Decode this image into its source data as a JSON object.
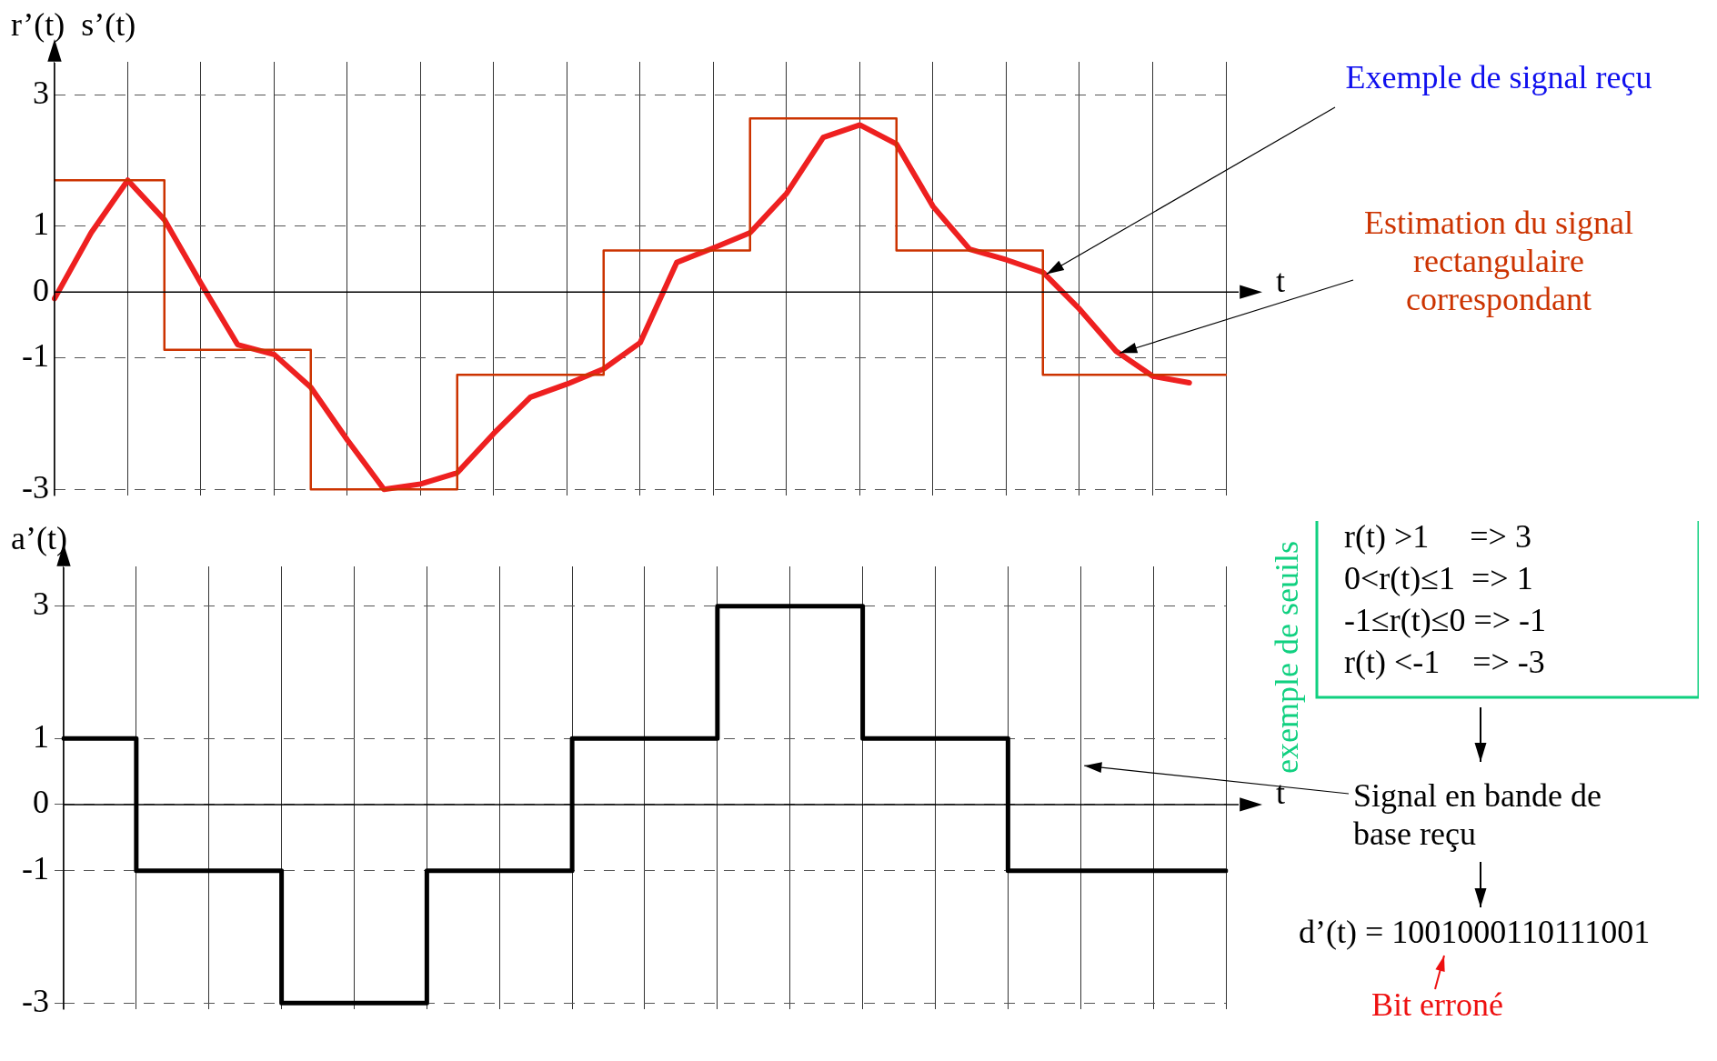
{
  "chart_data": [
    {
      "type": "line",
      "xlabel": "t",
      "ylabel": "r’(t)  s’(t)",
      "ylim": [
        -3.1,
        3.5
      ],
      "categories": [
        null,
        null,
        null,
        null,
        null,
        null,
        null,
        null,
        null,
        null,
        null,
        null,
        null,
        null,
        null,
        null,
        null,
        null,
        null,
        null,
        null,
        null,
        null,
        null,
        null,
        null,
        null,
        null,
        null,
        null,
        null,
        null,
        null
      ],
      "yticks": [
        -3,
        -1,
        0,
        1,
        3
      ],
      "grid": true,
      "tick_labels": "y",
      "marker": "none",
      "line_style": "solid",
      "series": [
        {
          "type": "step",
          "color": "#cc3300",
          "values": [
            1.7,
            1.7,
            1.7,
            1.7,
            -0.88,
            -0.88,
            -0.88,
            -0.88,
            -3.0,
            -3.0,
            -3.0,
            -3.0,
            -1.26,
            -1.26,
            -1.26,
            -1.26,
            0.63,
            0.63,
            0.63,
            0.63,
            2.64,
            2.64,
            2.64,
            2.64,
            0.63,
            0.63,
            0.63,
            0.63,
            -1.26,
            -1.26,
            -1.26,
            -1.26,
            -1.26
          ]
        },
        {
          "color": "#ee2020",
          "values": [
            -0.1,
            0.9,
            1.7,
            1.1,
            0.13,
            -0.8,
            -0.95,
            -1.45,
            -2.25,
            -3.0,
            -2.92,
            -2.75,
            -2.15,
            -1.6,
            -1.4,
            -1.17,
            -0.77,
            0.45,
            0.67,
            0.9,
            1.5,
            2.35,
            2.54,
            2.25,
            1.3,
            0.65,
            0.49,
            0.3,
            -0.26,
            -0.9,
            -1.28,
            -1.38,
            null
          ]
        }
      ],
      "annotations": [
        "Exemple de signal reçu",
        "Estimation du signal rectangulaire correspondant"
      ]
    },
    {
      "type": "step",
      "xlabel": "t",
      "ylabel": "a’(t)",
      "ylim": [
        -3.1,
        3.6
      ],
      "categories": [
        null,
        null,
        null,
        null,
        null,
        null,
        null,
        null,
        null,
        null,
        null,
        null,
        null,
        null,
        null,
        null,
        null
      ],
      "yticks": [
        -3,
        -1,
        0,
        1,
        3
      ],
      "grid": true,
      "tick_labels": "y",
      "marker": "none",
      "line_style": "solid",
      "series": [
        {
          "color": "#000000",
          "values": [
            1,
            1,
            -1,
            -1,
            -3,
            -3,
            -1,
            -1,
            1,
            1,
            3,
            3,
            1,
            1,
            -1,
            -1,
            -1
          ]
        }
      ],
      "annotations": [
        "exemple de seuils",
        "r(t) >1     => 3",
        "0<r(t)≤1  => 1",
        "-1≤r(t)≤0 => -1",
        "r(t) <-1    => -3",
        "Signal en bande de base reçu",
        "d’(t) = 1001000110111001",
        "Bit erroné"
      ]
    }
  ]
}
